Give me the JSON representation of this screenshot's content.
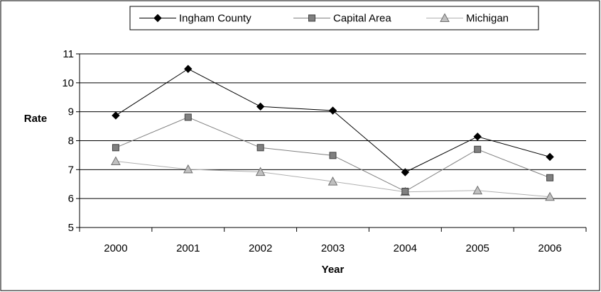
{
  "chart_data": {
    "type": "line",
    "categories": [
      "2000",
      "2001",
      "2002",
      "2003",
      "2004",
      "2005",
      "2006"
    ],
    "series": [
      {
        "name": "Ingham County",
        "values": [
          8.87,
          10.48,
          9.18,
          9.04,
          6.91,
          8.14,
          7.44
        ],
        "color": "#000000",
        "marker": "diamond"
      },
      {
        "name": "Capital Area",
        "values": [
          7.76,
          8.81,
          7.76,
          7.49,
          6.25,
          7.7,
          6.72
        ],
        "color": "#808080",
        "marker": "square"
      },
      {
        "name": "Michigan",
        "values": [
          7.29,
          7.01,
          6.92,
          6.59,
          6.23,
          6.28,
          6.06
        ],
        "color": "#b0b0b0",
        "marker": "triangle"
      }
    ],
    "xlabel": "Year",
    "ylabel": "Rate",
    "ylim": [
      5,
      11
    ],
    "yticks": [
      "5",
      "6",
      "7",
      "8",
      "9",
      "10",
      "11"
    ],
    "grid": "horizontal",
    "legend_position": "top-center"
  }
}
